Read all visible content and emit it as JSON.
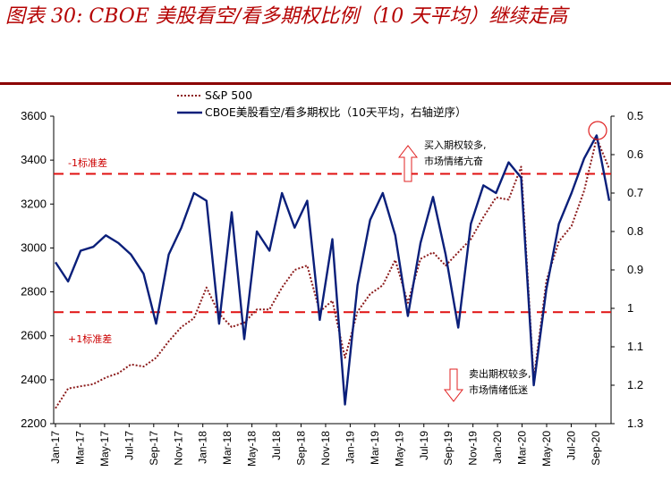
{
  "title": "图表 30: CBOE 美股看空/看多期权比例（10 天平均）继续走高",
  "chart_data": {
    "type": "line",
    "legend": [
      "S&P 500",
      "CBOE美股看空/看多期权比（10天平均，右轴逆序）"
    ],
    "left_axis": {
      "ylim": [
        2200,
        3600
      ],
      "ticks": [
        "2200",
        "2400",
        "2600",
        "2800",
        "3000",
        "3200",
        "3400",
        "3600"
      ]
    },
    "right_axis": {
      "ylim": [
        0.5,
        1.3
      ],
      "reversed": true,
      "ticks": [
        "0.5",
        "0.6",
        "0.7",
        "0.8",
        "0.9",
        "1",
        "1.1",
        "1.2",
        "1.3"
      ]
    },
    "x_ticks": [
      "Jan-17",
      "Mar-17",
      "May-17",
      "Jul-17",
      "Sep-17",
      "Nov-17",
      "Jan-18",
      "Mar-18",
      "May-18",
      "Jul-18",
      "Sep-18",
      "Nov-18",
      "Jan-19",
      "Mar-19",
      "May-19",
      "Jul-19",
      "Sep-19",
      "Nov-19",
      "Jan-20",
      "Mar-20",
      "May-20",
      "Jul-20",
      "Sep-20"
    ],
    "reference_lines": [
      {
        "label": "-1标准差",
        "value": 0.65
      },
      {
        "label": "+1标准差",
        "value": 1.01
      }
    ],
    "annotations": {
      "upper": [
        "买入期权较多,",
        "市场情绪亢奋"
      ],
      "lower": [
        "卖出期权较多,",
        "市场情绪低迷"
      ]
    },
    "series": [
      {
        "name": "S&P 500",
        "color": "#8b1a1a",
        "style": "dotted",
        "x": [
          "Jan-17",
          "Feb-17",
          "Mar-17",
          "Apr-17",
          "May-17",
          "Jun-17",
          "Jul-17",
          "Aug-17",
          "Sep-17",
          "Oct-17",
          "Nov-17",
          "Dec-17",
          "Jan-18",
          "Feb-18",
          "Mar-18",
          "Apr-18",
          "May-18",
          "Jun-18",
          "Jul-18",
          "Aug-18",
          "Sep-18",
          "Oct-18",
          "Nov-18",
          "Dec-18",
          "Jan-19",
          "Feb-19",
          "Mar-19",
          "Apr-19",
          "May-19",
          "Jun-19",
          "Jul-19",
          "Aug-19",
          "Sep-19",
          "Oct-19",
          "Nov-19",
          "Dec-19",
          "Jan-20",
          "Feb-20",
          "Mar-20",
          "Apr-20",
          "May-20",
          "Jun-20",
          "Jul-20",
          "Aug-20",
          "Sep-20"
        ],
        "values": [
          2270,
          2360,
          2370,
          2380,
          2410,
          2430,
          2470,
          2460,
          2500,
          2575,
          2640,
          2680,
          2820,
          2700,
          2640,
          2660,
          2720,
          2720,
          2820,
          2900,
          2920,
          2710,
          2760,
          2500,
          2710,
          2790,
          2830,
          2945,
          2750,
          2950,
          2980,
          2920,
          2980,
          3040,
          3140,
          3230,
          3220,
          3370,
          2400,
          2850,
          3030,
          3100,
          3260,
          3500,
          3360
        ]
      },
      {
        "name": "CBOE美股看空/看多期权比（10天平均，右轴逆序）",
        "color": "#0a1f7a",
        "style": "solid",
        "x": [
          "Jan-17",
          "Feb-17",
          "Mar-17",
          "Apr-17",
          "May-17",
          "Jun-17",
          "Jul-17",
          "Aug-17",
          "Sep-17",
          "Oct-17",
          "Nov-17",
          "Dec-17",
          "Jan-18",
          "Feb-18",
          "Mar-18",
          "Apr-18",
          "May-18",
          "Jun-18",
          "Jul-18",
          "Aug-18",
          "Sep-18",
          "Oct-18",
          "Nov-18",
          "Dec-18",
          "Jan-19",
          "Feb-19",
          "Mar-19",
          "Apr-19",
          "May-19",
          "Jun-19",
          "Jul-19",
          "Aug-19",
          "Sep-19",
          "Oct-19",
          "Nov-19",
          "Dec-19",
          "Jan-20",
          "Feb-20",
          "Mar-20",
          "Apr-20",
          "May-20",
          "Jun-20",
          "Jul-20",
          "Aug-20",
          "Sep-20"
        ],
        "values": [
          0.88,
          0.93,
          0.85,
          0.84,
          0.81,
          0.83,
          0.86,
          0.91,
          1.04,
          0.86,
          0.79,
          0.7,
          0.72,
          1.04,
          0.75,
          1.08,
          0.8,
          0.85,
          0.7,
          0.79,
          0.72,
          1.03,
          0.82,
          1.25,
          0.94,
          0.77,
          0.7,
          0.81,
          1.02,
          0.83,
          0.71,
          0.86,
          1.05,
          0.78,
          0.68,
          0.7,
          0.62,
          0.66,
          1.2,
          0.95,
          0.78,
          0.7,
          0.61,
          0.55,
          0.72
        ]
      }
    ]
  }
}
